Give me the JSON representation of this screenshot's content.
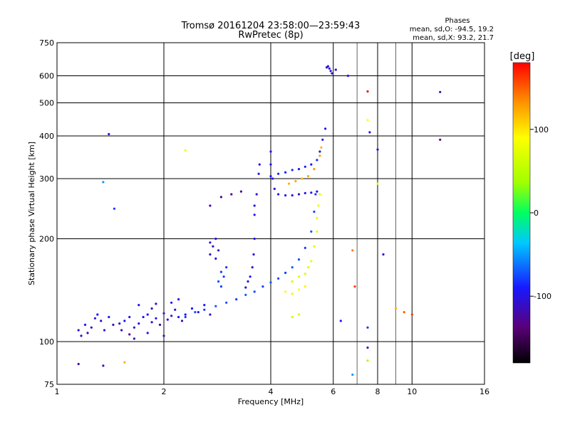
{
  "chart_data": {
    "type": "scatter",
    "title": "Tromsø 20161204 23:58:00—23:59:43",
    "subtitle": "RwPretec (8p)",
    "xlabel": "Frequency [MHz]",
    "ylabel": "Stationary phase Virtual Height [km]",
    "x_scale": "log",
    "y_scale": "log",
    "xlim": [
      1,
      16
    ],
    "ylim": [
      75,
      750
    ],
    "x_ticks": [
      1,
      2,
      4,
      6,
      8,
      10,
      16
    ],
    "y_ticks": [
      75,
      100,
      200,
      300,
      400,
      500,
      600,
      750
    ],
    "grid": true,
    "stats": {
      "heading": "Phases",
      "line_o": "mean, sd,O: -94.5, 19.2",
      "line_x": "mean, sd,X:  93.2, 21.7"
    },
    "colorbar": {
      "label": "[deg]",
      "range": [
        -180,
        180
      ],
      "ticks": [
        100,
        0,
        -100
      ]
    },
    "series": [
      {
        "points": [
          [
            1.15,
            108,
            -100
          ],
          [
            1.17,
            104,
            -110
          ],
          [
            1.2,
            112,
            -95
          ],
          [
            1.22,
            106,
            -120
          ],
          [
            1.25,
            110,
            -105
          ],
          [
            1.28,
            117,
            -100
          ],
          [
            1.3,
            120,
            -90
          ],
          [
            1.33,
            115,
            -110
          ],
          [
            1.36,
            108,
            -100
          ],
          [
            1.4,
            118,
            -95
          ],
          [
            1.44,
            112,
            -120
          ],
          [
            1.5,
            113,
            -100
          ],
          [
            1.52,
            108,
            -115
          ],
          [
            1.55,
            115,
            -95
          ],
          [
            1.6,
            118,
            -100
          ],
          [
            1.65,
            110,
            -110
          ],
          [
            1.7,
            113,
            -95
          ],
          [
            1.75,
            118,
            -100
          ],
          [
            1.8,
            120,
            -90
          ],
          [
            1.85,
            114,
            -105
          ],
          [
            1.9,
            117,
            -100
          ],
          [
            1.95,
            112,
            -120
          ],
          [
            2.0,
            121,
            -95
          ],
          [
            2.05,
            116,
            -100
          ],
          [
            2.1,
            119,
            -110
          ],
          [
            2.15,
            124,
            -100
          ],
          [
            2.2,
            118,
            -95
          ],
          [
            2.25,
            115,
            -120
          ],
          [
            2.3,
            120,
            -100
          ],
          [
            2.4,
            125,
            -95
          ],
          [
            2.5,
            122,
            -100
          ],
          [
            2.6,
            128,
            -90
          ],
          [
            2.7,
            120,
            -110
          ],
          [
            1.7,
            128,
            -100
          ],
          [
            1.9,
            129,
            -105
          ],
          [
            2.1,
            130,
            -95
          ],
          [
            2.2,
            133,
            -100
          ],
          [
            1.85,
            125,
            -120
          ],
          [
            1.6,
            105,
            -130
          ],
          [
            1.65,
            102,
            -120
          ],
          [
            1.8,
            106,
            -100
          ],
          [
            2.0,
            104,
            -110
          ],
          [
            2.3,
            118,
            -80
          ],
          [
            2.45,
            122,
            -75
          ],
          [
            2.6,
            124,
            -80
          ],
          [
            2.8,
            127,
            -70
          ],
          [
            3.0,
            130,
            -75
          ],
          [
            3.2,
            133,
            -80
          ],
          [
            3.4,
            137,
            -70
          ],
          [
            3.6,
            140,
            -75
          ],
          [
            3.8,
            145,
            -80
          ],
          [
            4.0,
            149,
            -70
          ],
          [
            4.2,
            153,
            -75
          ],
          [
            4.4,
            159,
            -80
          ],
          [
            4.6,
            165,
            -70
          ],
          [
            4.8,
            174,
            -75
          ],
          [
            5.0,
            188,
            -80
          ],
          [
            5.2,
            210,
            -70
          ],
          [
            5.3,
            240,
            -75
          ],
          [
            5.35,
            270,
            -80
          ],
          [
            3.6,
            235,
            -95
          ],
          [
            3.6,
            250,
            -100
          ],
          [
            3.6,
            200,
            -95
          ],
          [
            3.58,
            180,
            -100
          ],
          [
            3.55,
            165,
            -110
          ],
          [
            3.5,
            155,
            -95
          ],
          [
            3.45,
            150,
            -100
          ],
          [
            3.4,
            144,
            -105
          ],
          [
            3.65,
            270,
            -100
          ],
          [
            3.7,
            310,
            -95
          ],
          [
            3.72,
            330,
            -100
          ],
          [
            4.0,
            360,
            -100
          ],
          [
            4.0,
            330,
            -95
          ],
          [
            4.05,
            300,
            -100
          ],
          [
            4.1,
            280,
            -105
          ],
          [
            4.2,
            270,
            -100
          ],
          [
            4.4,
            268,
            -95
          ],
          [
            4.6,
            268,
            -100
          ],
          [
            4.8,
            270,
            -105
          ],
          [
            5.0,
            272,
            -100
          ],
          [
            5.2,
            273,
            -95
          ],
          [
            5.4,
            275,
            -100
          ],
          [
            4.0,
            305,
            -90
          ],
          [
            4.2,
            310,
            -85
          ],
          [
            4.4,
            313,
            -90
          ],
          [
            4.6,
            318,
            -85
          ],
          [
            4.8,
            320,
            -90
          ],
          [
            5.0,
            325,
            -95
          ],
          [
            5.2,
            330,
            -90
          ],
          [
            5.4,
            340,
            -85
          ],
          [
            5.5,
            360,
            -90
          ],
          [
            5.6,
            390,
            -95
          ],
          [
            5.7,
            420,
            -100
          ],
          [
            2.7,
            180,
            -110
          ],
          [
            2.75,
            190,
            -110
          ],
          [
            2.8,
            175,
            -100
          ],
          [
            2.85,
            185,
            -110
          ],
          [
            2.7,
            195,
            -105
          ],
          [
            2.8,
            200,
            -100
          ],
          [
            2.9,
            160,
            -80
          ],
          [
            2.85,
            150,
            -75
          ],
          [
            2.9,
            145,
            -80
          ],
          [
            2.95,
            155,
            -78
          ],
          [
            3.0,
            165,
            -82
          ],
          [
            2.7,
            250,
            -120
          ],
          [
            2.9,
            265,
            -130
          ],
          [
            3.1,
            270,
            -125
          ],
          [
            3.3,
            275,
            -130
          ],
          [
            4.6,
            150,
            60
          ],
          [
            4.8,
            155,
            70
          ],
          [
            5.0,
            158,
            65
          ],
          [
            5.1,
            165,
            70
          ],
          [
            5.2,
            172,
            75
          ],
          [
            5.3,
            190,
            70
          ],
          [
            5.4,
            210,
            75
          ],
          [
            5.4,
            230,
            80
          ],
          [
            5.45,
            250,
            78
          ],
          [
            5.5,
            270,
            72
          ],
          [
            4.5,
            290,
            120
          ],
          [
            4.7,
            295,
            125
          ],
          [
            4.9,
            300,
            120
          ],
          [
            5.1,
            305,
            125
          ],
          [
            5.3,
            320,
            130
          ],
          [
            5.5,
            350,
            125
          ],
          [
            5.55,
            370,
            120
          ],
          [
            4.4,
            140,
            90
          ],
          [
            4.6,
            138,
            95
          ],
          [
            4.8,
            142,
            90
          ],
          [
            5.0,
            145,
            95
          ],
          [
            4.6,
            118,
            60
          ],
          [
            4.8,
            120,
            65
          ],
          [
            5.8,
            640,
            -100
          ],
          [
            5.85,
            630,
            -110
          ],
          [
            5.9,
            620,
            -100
          ],
          [
            5.95,
            610,
            -105
          ],
          [
            5.75,
            635,
            -100
          ],
          [
            6.1,
            625,
            -95
          ],
          [
            1.4,
            405,
            -110
          ],
          [
            1.35,
            293,
            -50
          ],
          [
            1.45,
            245,
            -80
          ],
          [
            2.3,
            363,
            80
          ],
          [
            7.5,
            540,
            180
          ],
          [
            7.6,
            410,
            -100
          ],
          [
            8.0,
            365,
            -100
          ],
          [
            8.0,
            290,
            80
          ],
          [
            12.0,
            538,
            -120
          ],
          [
            12.0,
            390,
            -130
          ],
          [
            7.5,
            445,
            90
          ],
          [
            6.6,
            600,
            -100
          ],
          [
            6.3,
            115,
            -90
          ],
          [
            7.5,
            110,
            -80
          ],
          [
            7.5,
            96,
            -90
          ],
          [
            7.5,
            88,
            40
          ],
          [
            6.8,
            80,
            -50
          ],
          [
            8.3,
            180,
            -100
          ],
          [
            6.8,
            185,
            140
          ],
          [
            6.9,
            145,
            160
          ],
          [
            9.5,
            122,
            150
          ],
          [
            10.0,
            120,
            160
          ],
          [
            9.0,
            125,
            120
          ],
          [
            1.15,
            86,
            -120
          ],
          [
            1.35,
            85,
            -110
          ],
          [
            1.55,
            87,
            120
          ]
        ]
      }
    ]
  }
}
